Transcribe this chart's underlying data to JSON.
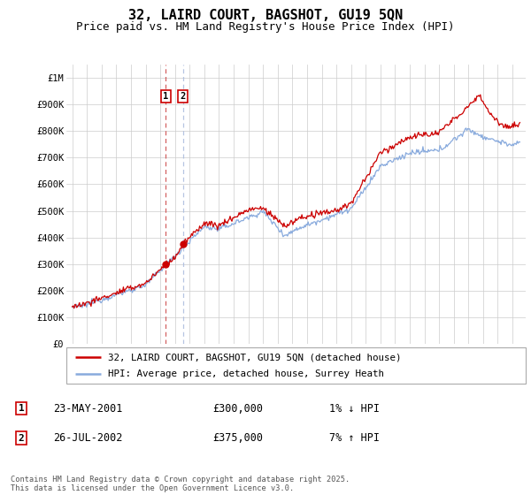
{
  "title": "32, LAIRD COURT, BAGSHOT, GU19 5QN",
  "subtitle": "Price paid vs. HM Land Registry's House Price Index (HPI)",
  "ylabel_ticks": [
    "£0",
    "£100K",
    "£200K",
    "£300K",
    "£400K",
    "£500K",
    "£600K",
    "£700K",
    "£800K",
    "£900K",
    "£1M"
  ],
  "ytick_values": [
    0,
    100000,
    200000,
    300000,
    400000,
    500000,
    600000,
    700000,
    800000,
    900000,
    1000000
  ],
  "ylim": [
    0,
    1050000
  ],
  "sale1_year": 2001.38,
  "sale1_price": 300000,
  "sale2_year": 2002.55,
  "sale2_price": 375000,
  "sale1_label": "1",
  "sale2_label": "2",
  "sale1_date": "23-MAY-2001",
  "sale1_amount": "£300,000",
  "sale1_hpi": "1% ↓ HPI",
  "sale2_date": "26-JUL-2002",
  "sale2_amount": "£375,000",
  "sale2_hpi": "7% ↑ HPI",
  "line1_label": "32, LAIRD COURT, BAGSHOT, GU19 5QN (detached house)",
  "line2_label": "HPI: Average price, detached house, Surrey Heath",
  "line1_color": "#cc0000",
  "line2_color": "#88aadd",
  "vline1_color": "#cc4444",
  "vline2_color": "#aabbdd",
  "grid_color": "#cccccc",
  "label_box_color": "#cc0000",
  "footnote": "Contains HM Land Registry data © Crown copyright and database right 2025.\nThis data is licensed under the Open Government Licence v3.0.",
  "title_fontsize": 11,
  "subtitle_fontsize": 9,
  "tick_fontsize": 7.5
}
